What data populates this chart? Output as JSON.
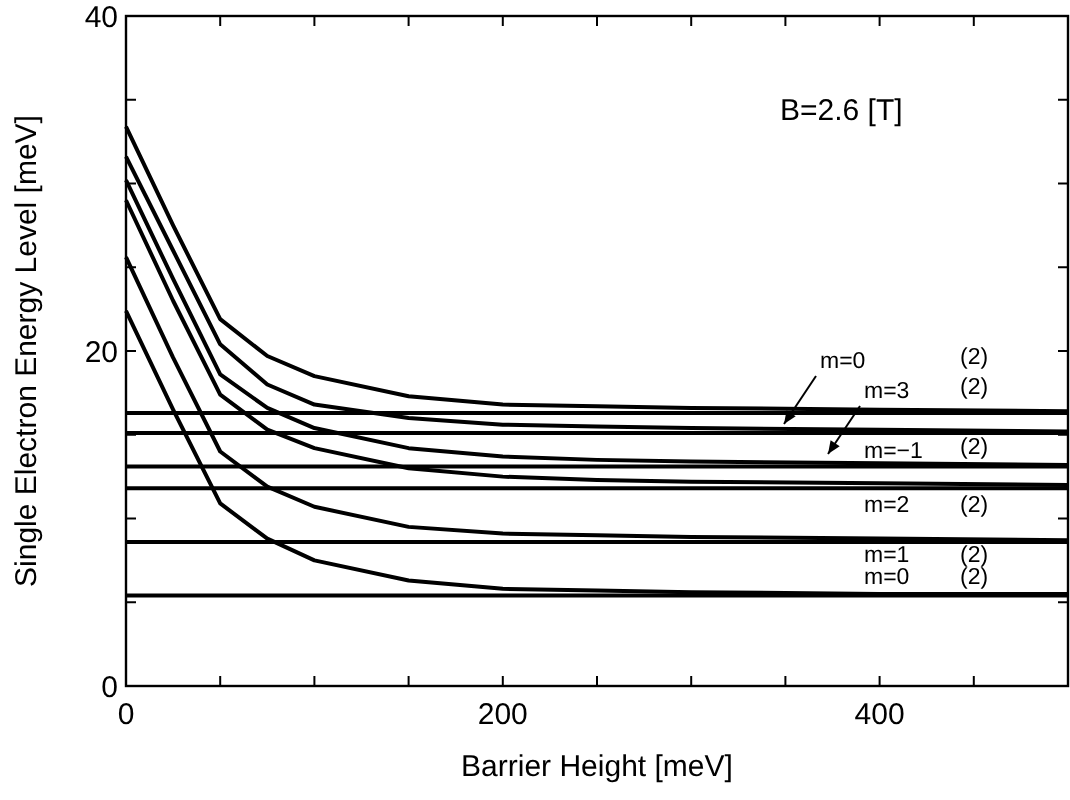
{
  "chart_data": {
    "type": "line",
    "xlabel": "Barrier Height [meV]",
    "ylabel": "Single Electron Energy Level [meV]",
    "xlim": [
      0,
      500
    ],
    "ylim": [
      0,
      40
    ],
    "xticks": [
      0,
      {
        "value": 50,
        "label": null
      },
      {
        "value": 100,
        "label": null
      },
      {
        "value": 150,
        "label": null
      },
      200,
      {
        "value": 250,
        "label": null
      },
      {
        "value": 300,
        "label": null
      },
      {
        "value": 350,
        "label": null
      },
      400,
      {
        "value": 450,
        "label": null
      },
      {
        "value": 500,
        "label": null
      }
    ],
    "yticks": [
      0,
      {
        "value": 5,
        "label": null
      },
      {
        "value": 10,
        "label": null
      },
      {
        "value": 15,
        "label": null
      },
      20,
      {
        "value": 25,
        "label": null
      },
      {
        "value": 30,
        "label": null
      },
      {
        "value": 35,
        "label": null
      },
      40
    ],
    "grid": false,
    "marker": "none",
    "line_style": "solid",
    "x": [
      0,
      25,
      50,
      75,
      100,
      150,
      200,
      250,
      300,
      400,
      500
    ],
    "series": [
      {
        "color": "#000000",
        "values": [
          33.4,
          27.5,
          21.9,
          19.7,
          18.5,
          17.3,
          16.8,
          16.7,
          16.6,
          16.5,
          16.4
        ]
      },
      {
        "color": "#000000",
        "values": [
          31.6,
          26.0,
          20.4,
          18.0,
          16.8,
          16.0,
          15.6,
          15.5,
          15.4,
          15.3,
          15.2
        ]
      },
      {
        "color": "#000000",
        "values": [
          30.2,
          24.3,
          18.6,
          16.6,
          15.4,
          14.2,
          13.7,
          13.5,
          13.4,
          13.3,
          13.2
        ]
      },
      {
        "color": "#000000",
        "values": [
          29.0,
          23.0,
          17.4,
          15.3,
          14.2,
          13.0,
          12.5,
          12.3,
          12.2,
          12.1,
          12.0
        ]
      },
      {
        "color": "#000000",
        "values": [
          25.6,
          19.6,
          14.0,
          11.9,
          10.7,
          9.5,
          9.1,
          9.0,
          8.9,
          8.8,
          8.7
        ]
      },
      {
        "color": "#000000",
        "values": [
          22.4,
          16.5,
          10.9,
          8.8,
          7.5,
          6.3,
          5.8,
          5.7,
          5.6,
          5.5,
          5.5
        ]
      }
    ],
    "ref_lines": [
      {
        "axis": "y",
        "value": 16.3,
        "color": "#000000"
      },
      {
        "axis": "y",
        "value": 15.1,
        "color": "#000000"
      },
      {
        "axis": "y",
        "value": 13.1,
        "color": "#000000"
      },
      {
        "axis": "y",
        "value": 11.8,
        "color": "#000000"
      },
      {
        "axis": "y",
        "value": 8.6,
        "color": "#000000"
      },
      {
        "axis": "y",
        "value": 5.4,
        "color": "#000000"
      }
    ],
    "annotations": [
      "B=2.6 [T]",
      "m=0",
      "m=3",
      "m=−1",
      "m=2",
      "m=1",
      "m=0",
      "(2)",
      "(2)",
      "(2)",
      "(2)",
      "(2)",
      "(2)"
    ]
  }
}
